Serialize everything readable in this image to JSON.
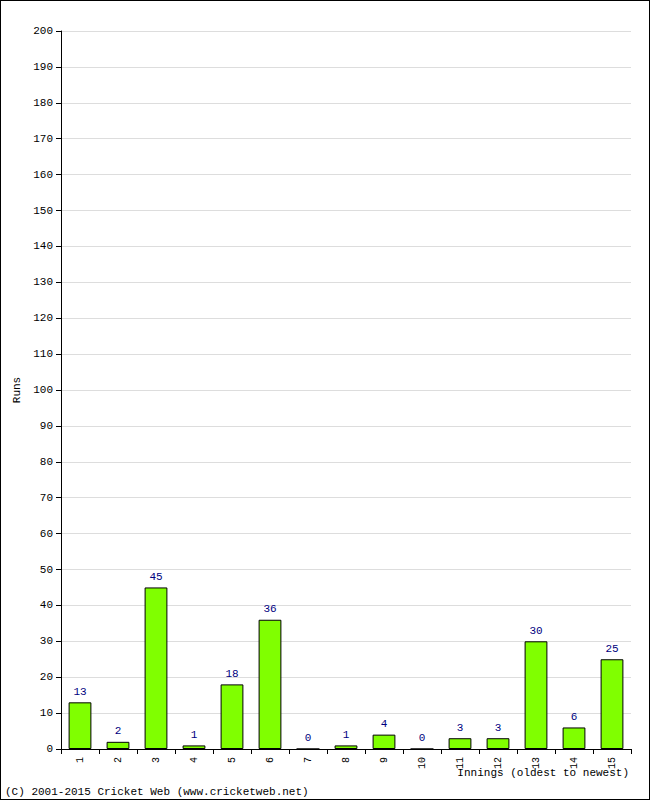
{
  "chart_data": {
    "type": "bar",
    "categories": [
      "1",
      "2",
      "3",
      "4",
      "5",
      "6",
      "7",
      "8",
      "9",
      "10",
      "11",
      "12",
      "13",
      "14",
      "15"
    ],
    "values": [
      13,
      2,
      45,
      1,
      18,
      36,
      0,
      1,
      4,
      0,
      3,
      3,
      30,
      6,
      25
    ],
    "color": "#80ff00",
    "x_label": "Innings (oldest to newest)",
    "y_label": "Runs",
    "annotations": [
      "(C) 2001-2015 Cricket Web (www.cricketweb.net)"
    ],
    "ylim": [
      0,
      200
    ],
    "yticks": [
      0,
      10,
      20,
      30,
      40,
      50,
      60,
      70,
      80,
      90,
      100,
      110,
      120,
      130,
      140,
      150,
      160,
      170,
      180,
      190,
      200
    ],
    "grid": true,
    "data_labels": true
  }
}
